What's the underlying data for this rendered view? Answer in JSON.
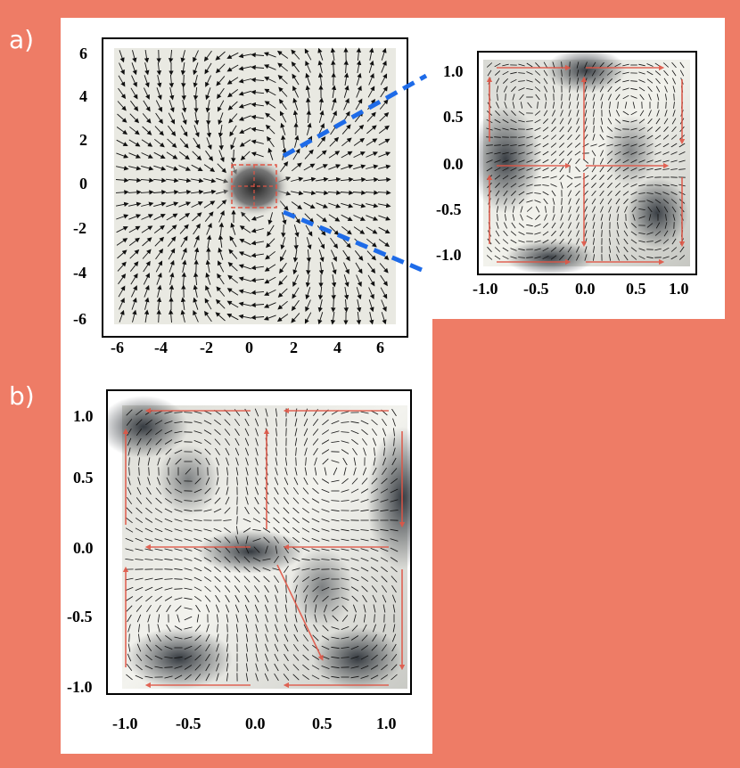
{
  "panel_labels": {
    "a": "a)",
    "b": "b)"
  },
  "panel_a_main": {
    "x_ticks": [
      "-6",
      "-4",
      "-2",
      "0",
      "2",
      "4",
      "6"
    ],
    "y_ticks": [
      "6",
      "4",
      "2",
      "0",
      "-2",
      "-4",
      "-6"
    ]
  },
  "panel_a_inset": {
    "x_ticks": [
      "-1.0",
      "-0.5",
      "0.0",
      "0.5",
      "1.0"
    ],
    "y_ticks": [
      "1.0",
      "0.5",
      "0.0",
      "-0.5",
      "-1.0"
    ]
  },
  "panel_b": {
    "x_ticks": [
      "-1.0",
      "-0.5",
      "0.0",
      "0.5",
      "1.0"
    ],
    "y_ticks": [
      "1.0",
      "0.5",
      "0.0",
      "-0.5",
      "-1.0"
    ]
  },
  "colors": {
    "background": "#ee7c66",
    "arrow": "#e05545",
    "zoom_line": "#1e6be8"
  }
}
